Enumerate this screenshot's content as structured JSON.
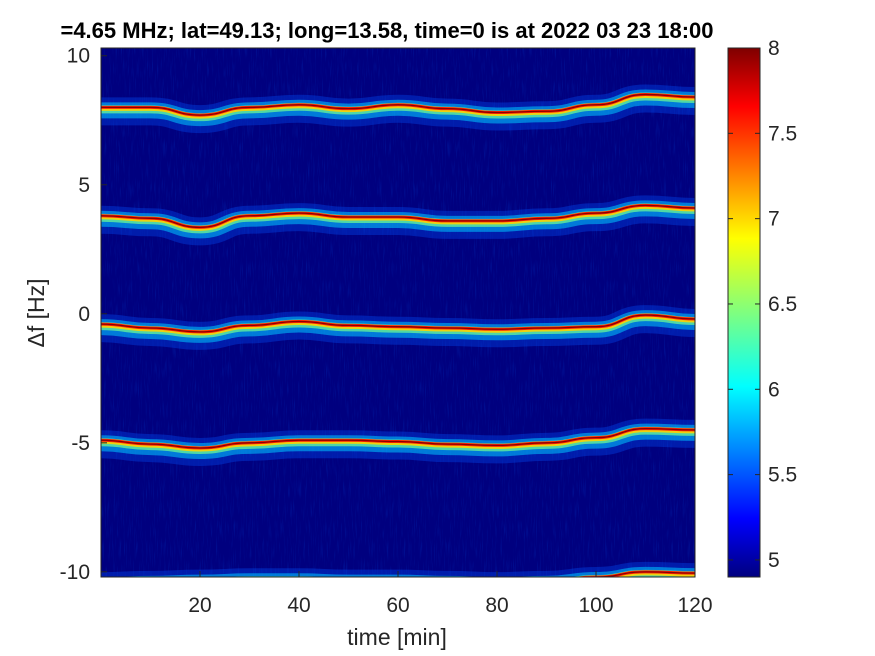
{
  "chart_data": {
    "type": "heatmap",
    "title": "=4.65 MHz;  lat=49.13; long=13.58, time=0 is at 2022 03 23 18:00",
    "xlabel": "time [min]",
    "ylabel": "Δf [Hz]",
    "xlim": [
      0,
      120
    ],
    "ylim": [
      -10.2,
      10.3
    ],
    "x_ticks": [
      20,
      40,
      60,
      80,
      100,
      120
    ],
    "x_tick_labels": [
      "20",
      "40",
      "60",
      "80",
      "100",
      "120"
    ],
    "y_ticks": [
      10,
      5,
      0,
      -5,
      -10
    ],
    "y_tick_labels": [
      "10",
      "5",
      "0",
      "-5",
      "-10"
    ],
    "colorbar": {
      "range": [
        4.9,
        8
      ],
      "ticks": [
        8,
        7.5,
        7,
        6.5,
        6,
        5.5,
        5
      ],
      "tick_labels": [
        "8",
        "7.5",
        "7",
        "6.5",
        "6",
        "5.5",
        "5"
      ],
      "colormap": "jet",
      "background_color": "#00007f"
    },
    "grid": false,
    "series": [
      {
        "x": [
          0,
          10,
          20,
          30,
          40,
          50,
          60,
          70,
          80,
          90,
          100,
          110,
          120
        ],
        "values": [
          8.0,
          8.0,
          7.7,
          8.0,
          8.1,
          7.95,
          8.1,
          7.95,
          7.8,
          7.85,
          8.1,
          8.5,
          8.4
        ]
      },
      {
        "x": [
          0,
          10,
          20,
          30,
          40,
          50,
          60,
          70,
          80,
          90,
          100,
          110,
          120
        ],
        "values": [
          3.8,
          3.7,
          3.35,
          3.8,
          3.9,
          3.75,
          3.75,
          3.6,
          3.6,
          3.7,
          3.9,
          4.2,
          4.1
        ]
      },
      {
        "x": [
          0,
          10,
          20,
          30,
          40,
          50,
          60,
          70,
          80,
          90,
          100,
          110,
          120
        ],
        "values": [
          -0.4,
          -0.55,
          -0.7,
          -0.45,
          -0.3,
          -0.45,
          -0.5,
          -0.55,
          -0.6,
          -0.55,
          -0.5,
          -0.05,
          -0.2
        ]
      },
      {
        "x": [
          0,
          10,
          20,
          30,
          40,
          50,
          60,
          70,
          80,
          90,
          100,
          110,
          120
        ],
        "values": [
          -4.9,
          -5.05,
          -5.2,
          -5.0,
          -4.9,
          -4.9,
          -4.95,
          -5.05,
          -5.1,
          -5.0,
          -4.8,
          -4.45,
          -4.5
        ]
      },
      {
        "x": [
          0,
          10,
          20,
          30,
          40,
          50,
          60,
          70,
          80,
          90,
          100,
          110,
          120
        ],
        "values": [
          -10.4,
          -10.35,
          -10.3,
          -10.25,
          -10.25,
          -10.3,
          -10.3,
          -10.35,
          -10.4,
          -10.35,
          -10.2,
          -10.0,
          -10.05
        ]
      }
    ]
  }
}
